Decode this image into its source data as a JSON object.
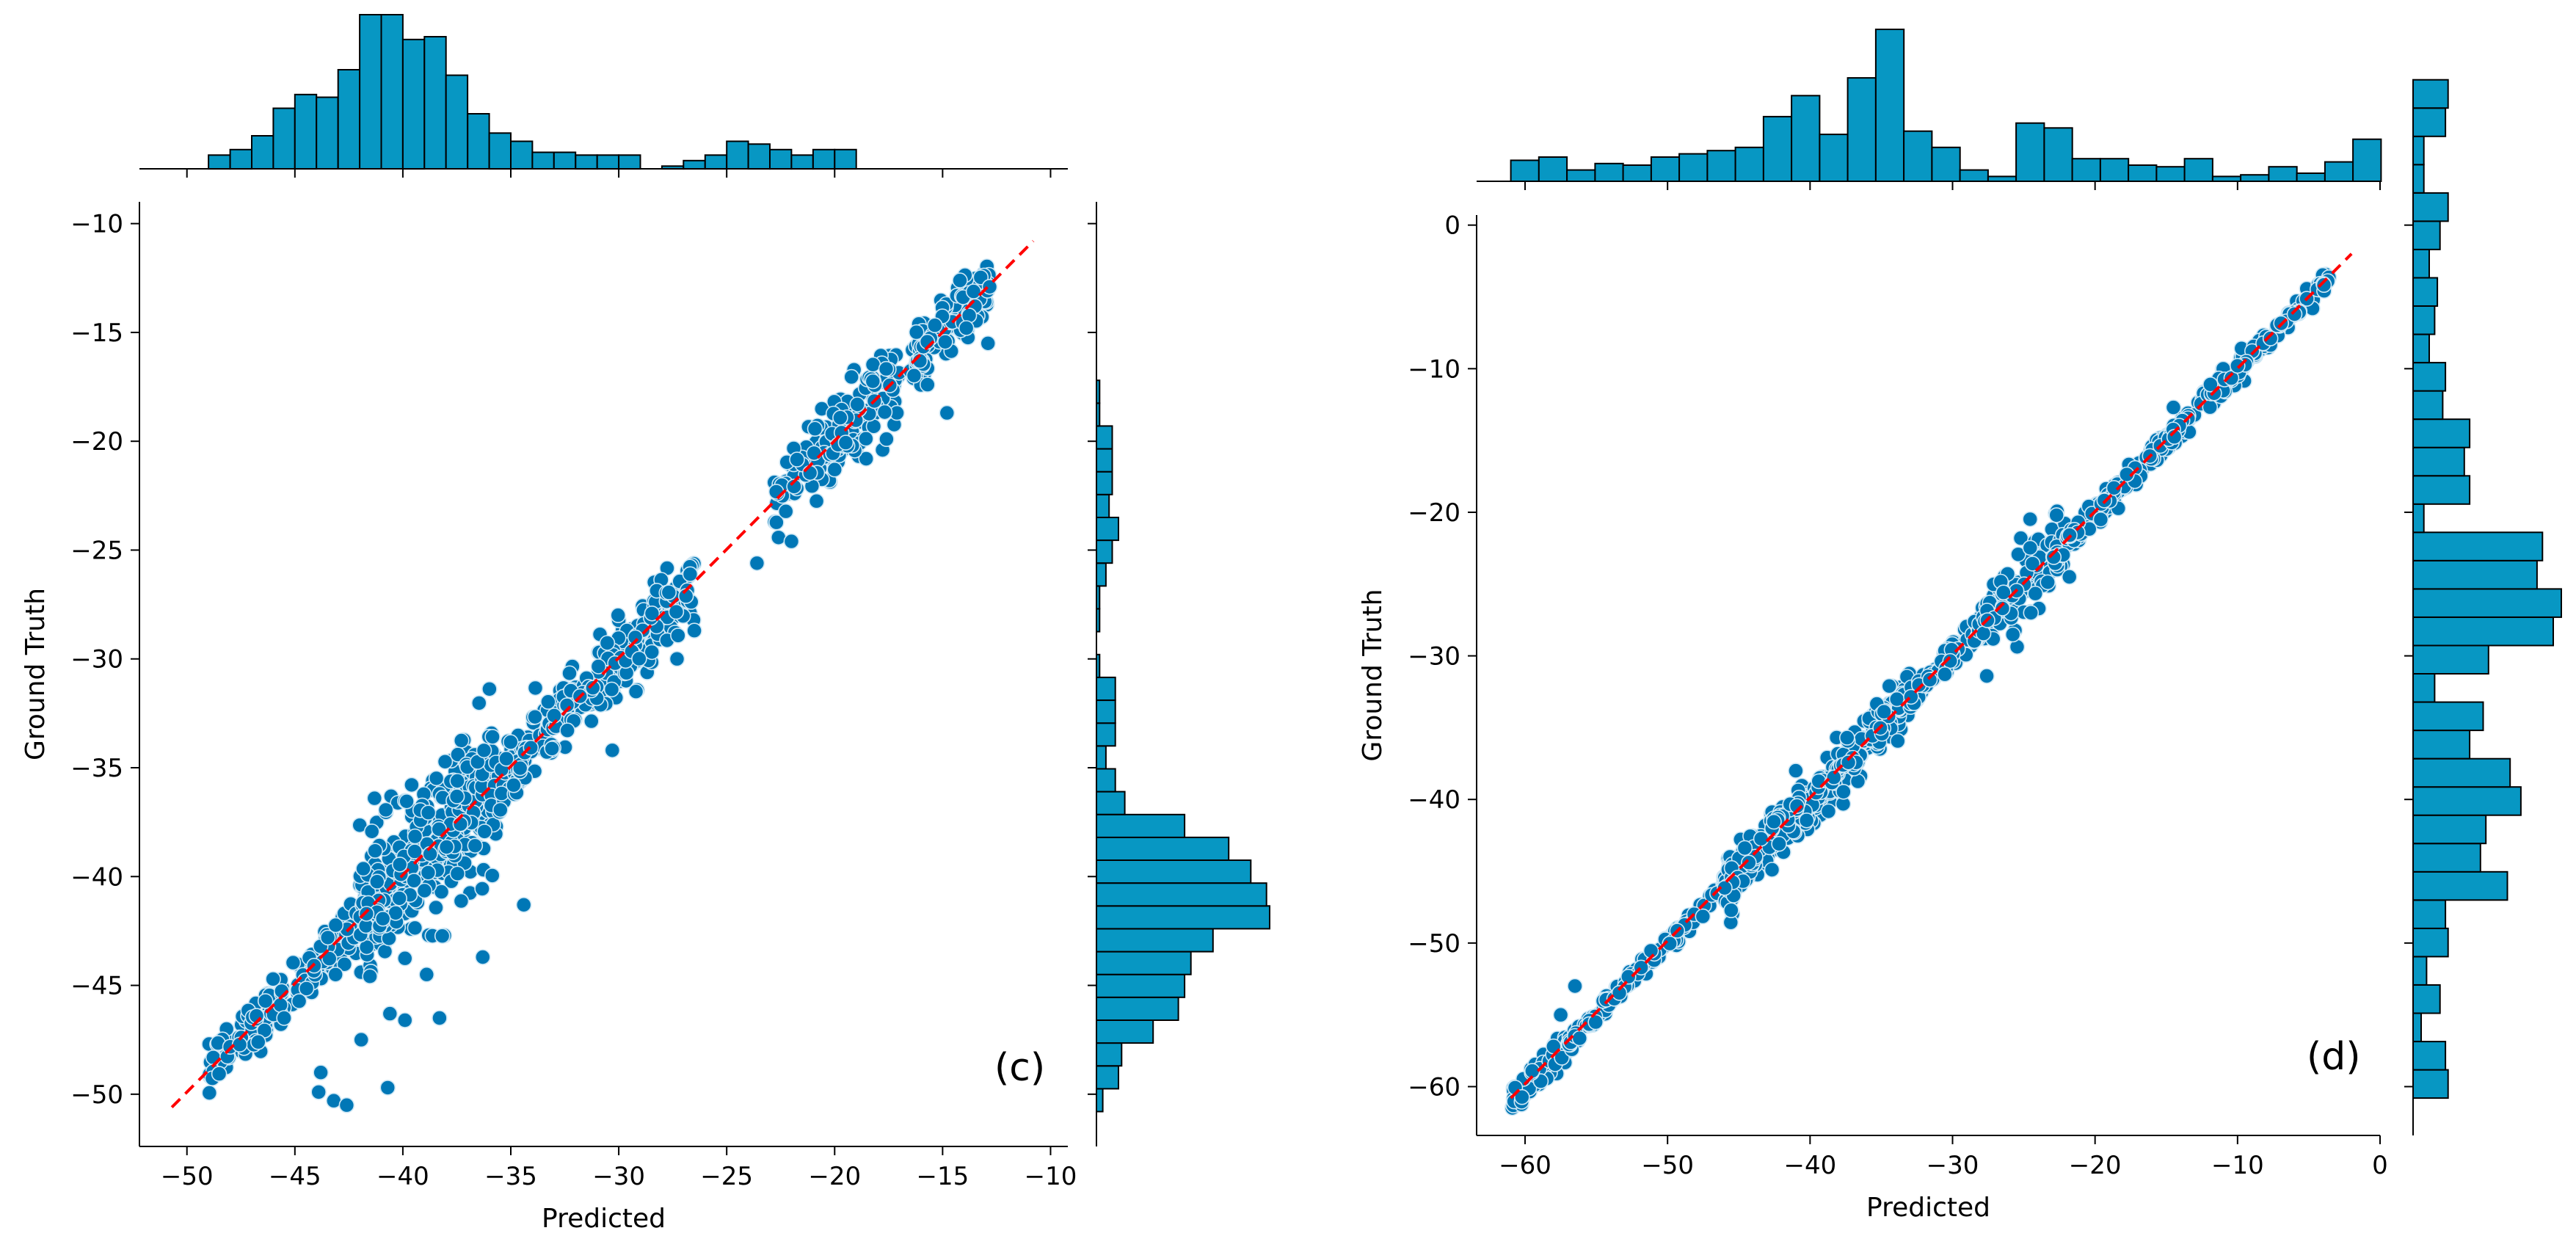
{
  "colors": {
    "point_fill": "#0077b6",
    "point_edge": "#d0e8f5",
    "bar_fill": "#0797c3",
    "bar_edge": "#000000",
    "identity_line": "#ff0000"
  },
  "chart_data": [
    {
      "type": "scatter",
      "panel_label": "(c)",
      "xlabel": "Predicted",
      "ylabel": "Ground Truth",
      "xlim": [
        -52.2,
        -9.2
      ],
      "ylim": [
        -52.4,
        -9.0
      ],
      "xticks": [
        -50,
        -45,
        -40,
        -35,
        -30,
        -25,
        -20,
        -15,
        -10
      ],
      "yticks": [
        -50,
        -45,
        -40,
        -35,
        -30,
        -25,
        -20,
        -15,
        -10
      ],
      "xtick_labels": [
        "−50",
        "−45",
        "−40",
        "−35",
        "−30",
        "−25",
        "−20",
        "−15",
        "−10"
      ],
      "ytick_labels": [
        "−50",
        "−45",
        "−40",
        "−35",
        "−30",
        "−25",
        "−20",
        "−15",
        "−10"
      ],
      "grid": false,
      "identity_line": {
        "from": [
          -50.7,
          -50.6
        ],
        "to": [
          -10.8,
          -10.8
        ],
        "style": "dashed"
      },
      "clusters": [
        {
          "x_range": [
            -49.0,
            -42.0
          ],
          "spread": 0.6,
          "count": 170
        },
        {
          "x_range": [
            -42.0,
            -35.5
          ],
          "spread": 1.6,
          "count": 420
        },
        {
          "x_range": [
            -35.5,
            -26.5
          ],
          "spread": 0.8,
          "count": 300
        },
        {
          "x_range": [
            -22.8,
            -17.0
          ],
          "spread": 1.0,
          "count": 160
        },
        {
          "x_range": [
            -16.5,
            -12.8
          ],
          "spread": 0.7,
          "count": 140
        }
      ],
      "outliers": [
        [
          -43.8,
          -49.0
        ],
        [
          -43.9,
          -49.9
        ],
        [
          -43.2,
          -50.3
        ],
        [
          -42.6,
          -50.5
        ],
        [
          -40.7,
          -49.7
        ],
        [
          -38.9,
          -44.5
        ],
        [
          -38.3,
          -46.5
        ],
        [
          -36.3,
          -43.7
        ],
        [
          -34.4,
          -41.3
        ],
        [
          -30.3,
          -34.2
        ],
        [
          -29.2,
          -31.5
        ],
        [
          -27.3,
          -30.0
        ],
        [
          -26.5,
          -28.7
        ],
        [
          -23.6,
          -25.6
        ],
        [
          -22.0,
          -24.6
        ],
        [
          -20.0,
          -21.3
        ],
        [
          -17.6,
          -19.9
        ],
        [
          -15.7,
          -17.4
        ],
        [
          -14.8,
          -18.7
        ],
        [
          -13.9,
          -14.8
        ],
        [
          -12.9,
          -15.5
        ],
        [
          -46.7,
          -47.6
        ],
        [
          -45.5,
          -46.5
        ],
        [
          -40.6,
          -46.3
        ],
        [
          -39.9,
          -46.6
        ]
      ],
      "top_histogram": {
        "bin_edges_start": -49.0,
        "bin_width": 1.0,
        "counts": [
          5,
          7,
          12,
          22,
          27,
          26,
          36,
          56,
          56,
          47,
          48,
          34,
          20,
          13,
          10,
          6,
          6,
          5,
          5,
          5,
          0,
          1,
          3,
          5,
          10,
          9,
          7,
          5,
          7,
          7
        ]
      },
      "right_histogram": {
        "bin_edges_start": -50.8,
        "bin_width": 1.05,
        "counts": [
          2,
          7,
          8,
          18,
          26,
          28,
          30,
          37,
          55,
          54,
          49,
          42,
          28,
          9,
          6,
          3,
          6,
          6,
          6,
          1,
          0,
          1,
          1,
          3,
          5,
          7,
          4,
          5,
          5,
          5,
          1,
          1
        ]
      }
    },
    {
      "type": "scatter",
      "panel_label": "(d)",
      "xlabel": "Predicted",
      "ylabel": "Ground Truth",
      "xlim": [
        -63.4,
        0.0
      ],
      "ylim": [
        -63.4,
        0.7
      ],
      "xticks": [
        -60,
        -50,
        -40,
        -30,
        -20,
        -10,
        0
      ],
      "yticks": [
        -60,
        -50,
        -40,
        -30,
        -20,
        -10,
        0
      ],
      "xtick_labels": [
        "−60",
        "−50",
        "−40",
        "−30",
        "−20",
        "−10",
        "0"
      ],
      "ytick_labels": [
        "−60",
        "−50",
        "−40",
        "−30",
        "−20",
        "−10",
        "0"
      ],
      "grid": false,
      "identity_line": {
        "from": [
          -61.0,
          -60.8
        ],
        "to": [
          -2.0,
          -2.0
        ],
        "style": "dashed"
      },
      "clusters": [
        {
          "x_range": [
            -61.0,
            -57.0
          ],
          "spread": 0.5,
          "count": 90
        },
        {
          "x_range": [
            -57.0,
            -46.0
          ],
          "spread": 0.3,
          "count": 140
        },
        {
          "x_range": [
            -46.0,
            -33.0
          ],
          "spread": 0.9,
          "count": 380
        },
        {
          "x_range": [
            -33.0,
            -23.0
          ],
          "spread": 0.5,
          "count": 210
        },
        {
          "x_range": [
            -28.0,
            -22.0
          ],
          "spread": 1.3,
          "count": 110
        },
        {
          "x_range": [
            -23.0,
            -3.5
          ],
          "spread": 0.4,
          "count": 330
        }
      ],
      "outliers": [
        [
          -56.5,
          -53.0
        ],
        [
          -57.5,
          -55.0
        ],
        [
          -58.0,
          -57.2
        ],
        [
          -41.0,
          -38.0
        ],
        [
          -37.4,
          -35.7
        ],
        [
          -24.5,
          -27.0
        ],
        [
          -26.5,
          -26.7
        ],
        [
          -21.8,
          -24.5
        ],
        [
          -22.7,
          -20.2
        ],
        [
          -19.6,
          -20.5
        ],
        [
          -14.5,
          -12.7
        ],
        [
          -11.9,
          -11.1
        ],
        [
          -10.0,
          -9.8
        ],
        [
          -6.0,
          -6.2
        ],
        [
          -27.6,
          -31.4
        ]
      ],
      "top_histogram": {
        "bin_edges_start": -61.0,
        "bin_width": 1.97,
        "counts": [
          13,
          15,
          7,
          11,
          10,
          15,
          17,
          19,
          21,
          40,
          53,
          29,
          64,
          94,
          31,
          21,
          7,
          3,
          36,
          33,
          14,
          14,
          10,
          9,
          14,
          3,
          4,
          9,
          5,
          12,
          26
        ]
      },
      "right_histogram": {
        "bin_edges_start": -60.8,
        "bin_width": 1.97,
        "counts": [
          13,
          12,
          3,
          10,
          5,
          13,
          12,
          35,
          25,
          27,
          40,
          36,
          21,
          26,
          8,
          28,
          52,
          55,
          46,
          48,
          4,
          21,
          19,
          21,
          11,
          12,
          6,
          8,
          9,
          6,
          10,
          13,
          4,
          4,
          12,
          13,
          0
        ]
      }
    }
  ]
}
